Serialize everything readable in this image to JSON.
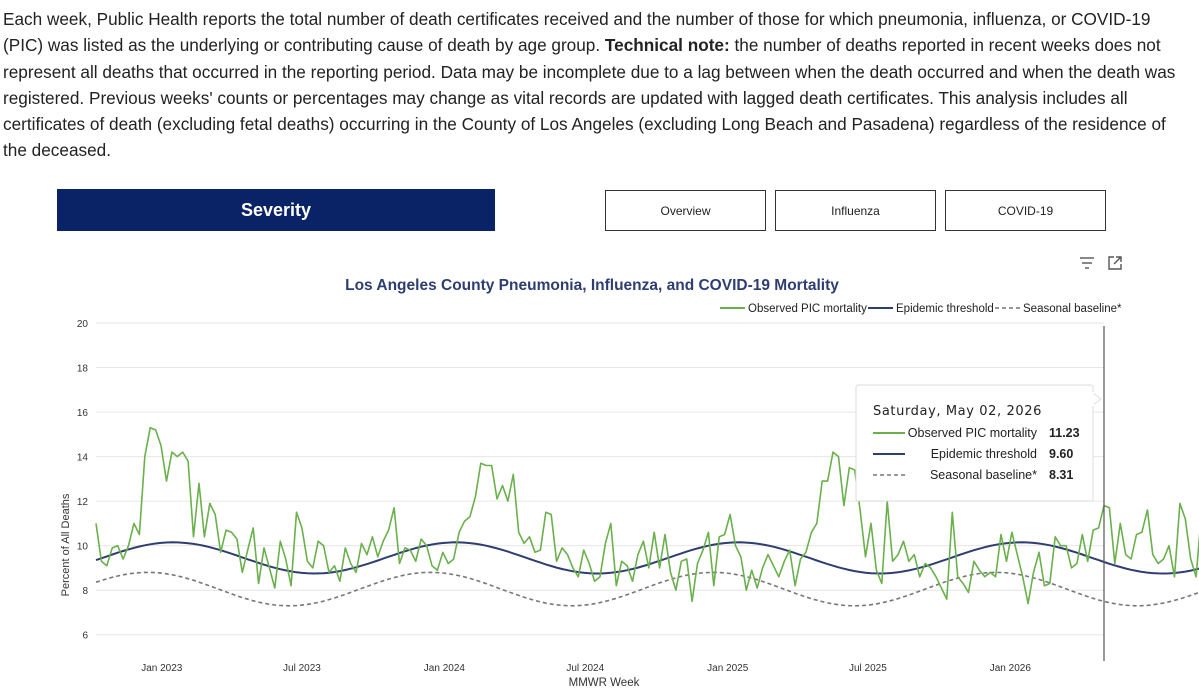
{
  "intro": {
    "part1": "Each week, Public Health reports the total number of death certificates received and the number of those for which pneumonia, influenza, or COVID-19 (PIC) was listed as the underlying or contributing cause of death by age group. ",
    "bold": "Technical note:",
    "part2": " the number of deaths reported in recent weeks does not represent all deaths that occurred in the reporting period. Data may be incomplete due to a lag between when the death occurred and when the death was registered. Previous weeks' counts or percentages may change as vital records are updated with lagged death certificates. This analysis includes all certificates of death (excluding fetal deaths) occurring in the County of Los Angeles (excluding Long Beach and Pasadena) regardless of the residence of the deceased."
  },
  "tabs": {
    "active": "Severity",
    "items": [
      "Overview",
      "Influenza",
      "COVID-19"
    ]
  },
  "icons": {
    "filter": "filter-icon",
    "expand": "expand-icon"
  },
  "colors": {
    "observed": "#6ab04c",
    "threshold": "#2e3d72",
    "baseline": "#777777",
    "tab_active": "#0a2366"
  },
  "tooltip": {
    "date": "Saturday, May 02, 2026",
    "rows": [
      {
        "label": "Observed PIC mortality",
        "value": "11.23"
      },
      {
        "label": "Epidemic threshold",
        "value": "9.60"
      },
      {
        "label": "Seasonal baseline*",
        "value": "8.31"
      }
    ]
  },
  "chart_data": {
    "type": "line",
    "title": "Los Angeles County Pneumonia, Influenza, and COVID-19 Mortality",
    "xlabel": "MMWR Week",
    "ylabel": "Percent of All Deaths",
    "ylim": [
      5,
      20
    ],
    "yticks": [
      6,
      8,
      10,
      12,
      14,
      16,
      18,
      20
    ],
    "grid": true,
    "legend_position": "top-right",
    "x_start": "2022-10-08",
    "x_end": "2026-05-02",
    "x_tick_labels": [
      "Jan 2023",
      "Jul 2023",
      "Jan 2024",
      "Jul 2024",
      "Jan 2025",
      "Jul 2025",
      "Jan 2026"
    ],
    "x_tick_dates": [
      "2023-01-01",
      "2023-07-01",
      "2024-01-01",
      "2024-07-01",
      "2025-01-01",
      "2025-07-01",
      "2026-01-01"
    ],
    "series": [
      {
        "name": "Observed PIC mortality",
        "values": [
          11.0,
          9.3,
          9.1,
          9.9,
          10.0,
          9.4,
          10.0,
          11.0,
          10.5,
          14.0,
          15.3,
          15.2,
          14.5,
          12.9,
          14.2,
          14.0,
          14.2,
          13.8,
          10.4,
          12.8,
          10.4,
          11.9,
          11.4,
          9.7,
          10.7,
          10.6,
          10.3,
          8.8,
          9.8,
          10.8,
          8.3,
          9.9,
          9.0,
          8.1,
          10.2,
          9.4,
          8.2,
          11.5,
          10.8,
          9.3,
          9.0,
          10.2,
          10.0,
          8.8,
          9.1,
          8.4,
          9.9,
          9.2,
          8.8,
          10.1,
          9.6,
          10.4,
          9.5,
          10.2,
          10.7,
          11.7,
          9.2,
          9.9,
          9.8,
          9.3,
          10.3,
          10.0,
          9.1,
          8.9,
          9.7,
          9.2,
          9.4,
          10.6,
          11.1,
          11.3,
          12.2,
          13.7,
          13.6,
          13.6,
          12.1,
          12.7,
          12.0,
          13.2,
          10.6,
          10.1,
          10.4,
          9.7,
          9.8,
          11.5,
          11.4,
          9.3,
          9.9,
          9.6,
          9.0,
          8.6,
          9.8,
          9.2,
          8.4,
          8.6,
          10.1,
          11.0,
          8.2,
          9.3,
          9.1,
          8.4,
          9.6,
          10.2,
          9.0,
          10.6,
          9.0,
          10.5,
          8.8,
          8.0,
          9.3,
          9.4,
          7.5,
          9.2,
          9.8,
          10.6,
          8.2,
          10.4,
          10.5,
          11.4,
          10.0,
          9.5,
          8.0,
          8.9,
          8.1,
          9.0,
          9.6,
          9.1,
          8.6,
          9.3,
          9.8,
          8.2,
          9.4,
          9.7,
          10.6,
          11.0,
          12.9,
          12.9,
          14.2,
          14.0,
          11.8,
          13.5,
          13.4,
          11.6,
          9.5,
          11.0,
          8.9,
          8.3,
          12.0,
          9.3,
          9.6,
          10.2,
          9.3,
          9.6,
          8.6,
          9.2,
          9.0,
          8.6,
          8.1,
          7.6,
          11.5,
          8.6,
          8.3,
          7.9,
          9.3,
          8.9,
          8.6,
          8.8,
          8.6,
          10.5,
          9.3,
          10.6,
          9.6,
          8.6,
          7.4,
          8.8,
          9.7,
          8.2,
          8.3,
          10.4,
          10.0,
          10.0,
          9.0,
          9.2,
          10.5,
          9.3,
          10.7,
          10.8,
          11.8,
          11.7,
          9.2,
          11.0,
          9.6,
          9.4,
          10.5,
          10.6,
          11.6,
          9.6,
          9.2,
          9.4,
          10.0,
          8.6,
          11.9,
          11.2,
          9.4,
          8.6,
          11.5,
          10.9,
          9.8,
          8.4,
          9.5,
          10.0,
          9.8,
          11.23
        ]
      },
      {
        "name": "Epidemic threshold",
        "values": []
      },
      {
        "name": "Seasonal baseline*",
        "values": []
      }
    ]
  }
}
